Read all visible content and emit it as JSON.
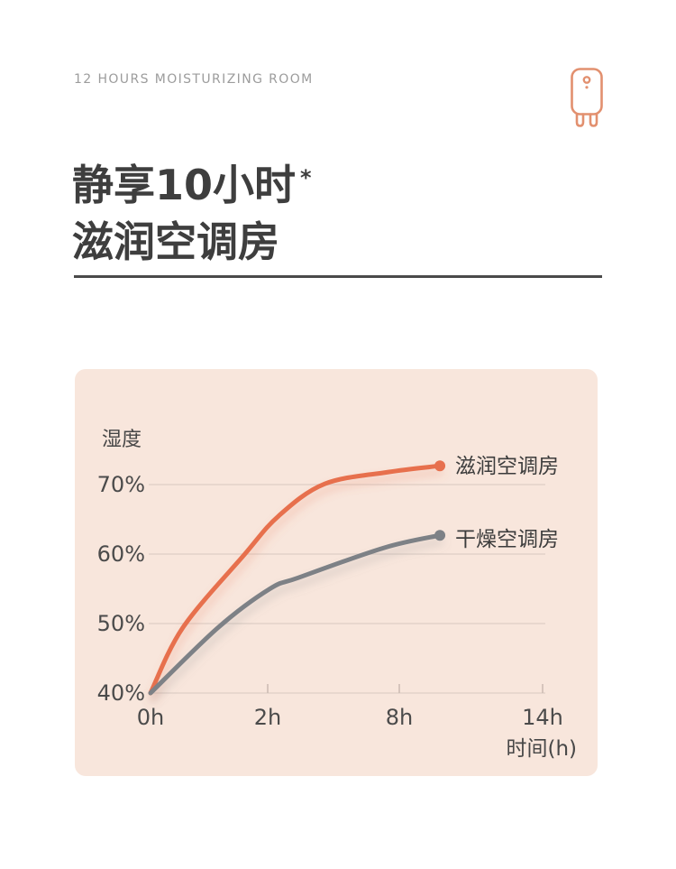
{
  "page": {
    "eyebrow": "12 HOURS MOISTURIZING ROOM",
    "heading_line1": "静享10小时",
    "heading_asterisk": "*",
    "heading_line2": "滋润空调房"
  },
  "colors": {
    "accent_orange": "#E7704E",
    "icon_orange": "#E2906F",
    "panel_bg": "#F8E6DC",
    "gridline": "#E2D2C9",
    "tick_mark": "#CDBCB4",
    "text_dark": "#3E3E3E",
    "text_gray": "#9C9C9C",
    "series_gray": "#7D8186",
    "divider": "#4A4A4A"
  },
  "chart_data": {
    "type": "line",
    "title": "",
    "ylabel": "湿度",
    "xlabel": "时间(h)",
    "grid": "horizontal-only",
    "legend_position": "right-of-line-end",
    "ylim": [
      40,
      74
    ],
    "y_ticks": [
      {
        "value": 70,
        "label": "70%"
      },
      {
        "value": 60,
        "label": "60%"
      },
      {
        "value": 50,
        "label": "50%"
      },
      {
        "value": 40,
        "label": "40%"
      }
    ],
    "x_ticks": [
      {
        "hour": 0,
        "label": "0h"
      },
      {
        "hour": 2,
        "label": "2h"
      },
      {
        "hour": 8,
        "label": "8h"
      },
      {
        "hour": 14,
        "label": "14h"
      }
    ],
    "series": [
      {
        "name": "滋润空调房",
        "color": "#E7704E",
        "points": [
          [
            0,
            40
          ],
          [
            0.55,
            49.4
          ],
          [
            1.6,
            59.9
          ],
          [
            2.5,
            65.5
          ],
          [
            4.6,
            70.1
          ],
          [
            7.5,
            71.8
          ],
          [
            9.7,
            72.7
          ]
        ]
      },
      {
        "name": "干燥空调房",
        "color": "#7D8186",
        "points": [
          [
            0,
            40
          ],
          [
            1.15,
            49.4
          ],
          [
            2.1,
            55.0
          ],
          [
            3.4,
            56.6
          ],
          [
            7.3,
            60.9
          ],
          [
            9.7,
            62.7
          ]
        ]
      }
    ]
  }
}
